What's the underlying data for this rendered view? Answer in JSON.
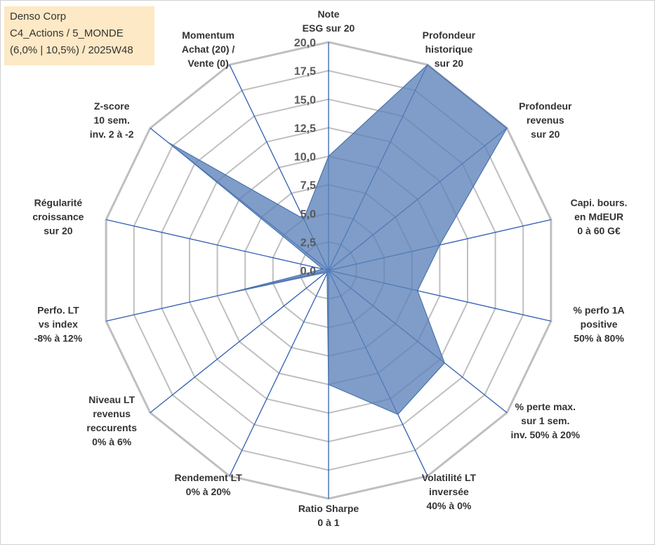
{
  "info_box": {
    "line1": "Denso Corp",
    "line2": "C4_Actions / 5_MONDE",
    "line3": "(6,0% | 10,5%) / 2025W48"
  },
  "chart_data": {
    "type": "radar",
    "title": "",
    "rlim": [
      0,
      20
    ],
    "ticks": [
      "0,0",
      "2,5",
      "5,0",
      "7,5",
      "10,0",
      "12,5",
      "15,0",
      "17,5",
      "20,0"
    ],
    "grid": true,
    "grid_color": "#bfbfbf",
    "axis_line_color": "#2f5fb3",
    "fill_color": "#5b82b8",
    "edge_color": "#4a72ad",
    "axes": [
      {
        "lines": [
          "Note",
          "ESG sur 20"
        ]
      },
      {
        "lines": [
          "Profondeur",
          "historique",
          "sur 20"
        ]
      },
      {
        "lines": [
          "Profondeur",
          "revenus",
          "sur 20"
        ]
      },
      {
        "lines": [
          "Capi. bours.",
          "en MdEUR",
          "0 à 60 G€"
        ]
      },
      {
        "lines": [
          "% perfo 1A",
          "positive",
          "50% à 80%"
        ]
      },
      {
        "lines": [
          "% perte max.",
          "sur 1 sem.",
          "inv. 50% à 20%"
        ]
      },
      {
        "lines": [
          "Volatilité LT",
          "inversée",
          "40% à 0%"
        ]
      },
      {
        "lines": [
          "Ratio Sharpe",
          "0 à 1"
        ]
      },
      {
        "lines": [
          "Rendement LT",
          "0% à 20%"
        ]
      },
      {
        "lines": [
          "Niveau LT",
          "revenus",
          "reccurents",
          "0% à 6%"
        ]
      },
      {
        "lines": [
          "Perfo. LT",
          "vs index",
          "-8% à 12%"
        ]
      },
      {
        "lines": [
          "Régularité",
          "croissance",
          "sur 20"
        ]
      },
      {
        "lines": [
          "Z-score",
          "10 sem.",
          "inv. 2 à -2"
        ]
      },
      {
        "lines": [
          "Momentum",
          "Achat (20) /",
          "Vente (0)"
        ]
      }
    ],
    "series": [
      {
        "values": [
          10.0,
          20.0,
          20.0,
          10.0,
          8.0,
          13.0,
          14.0,
          10.0,
          0.3,
          0.3,
          9.0,
          0.5,
          18.0,
          5.0
        ]
      }
    ]
  }
}
